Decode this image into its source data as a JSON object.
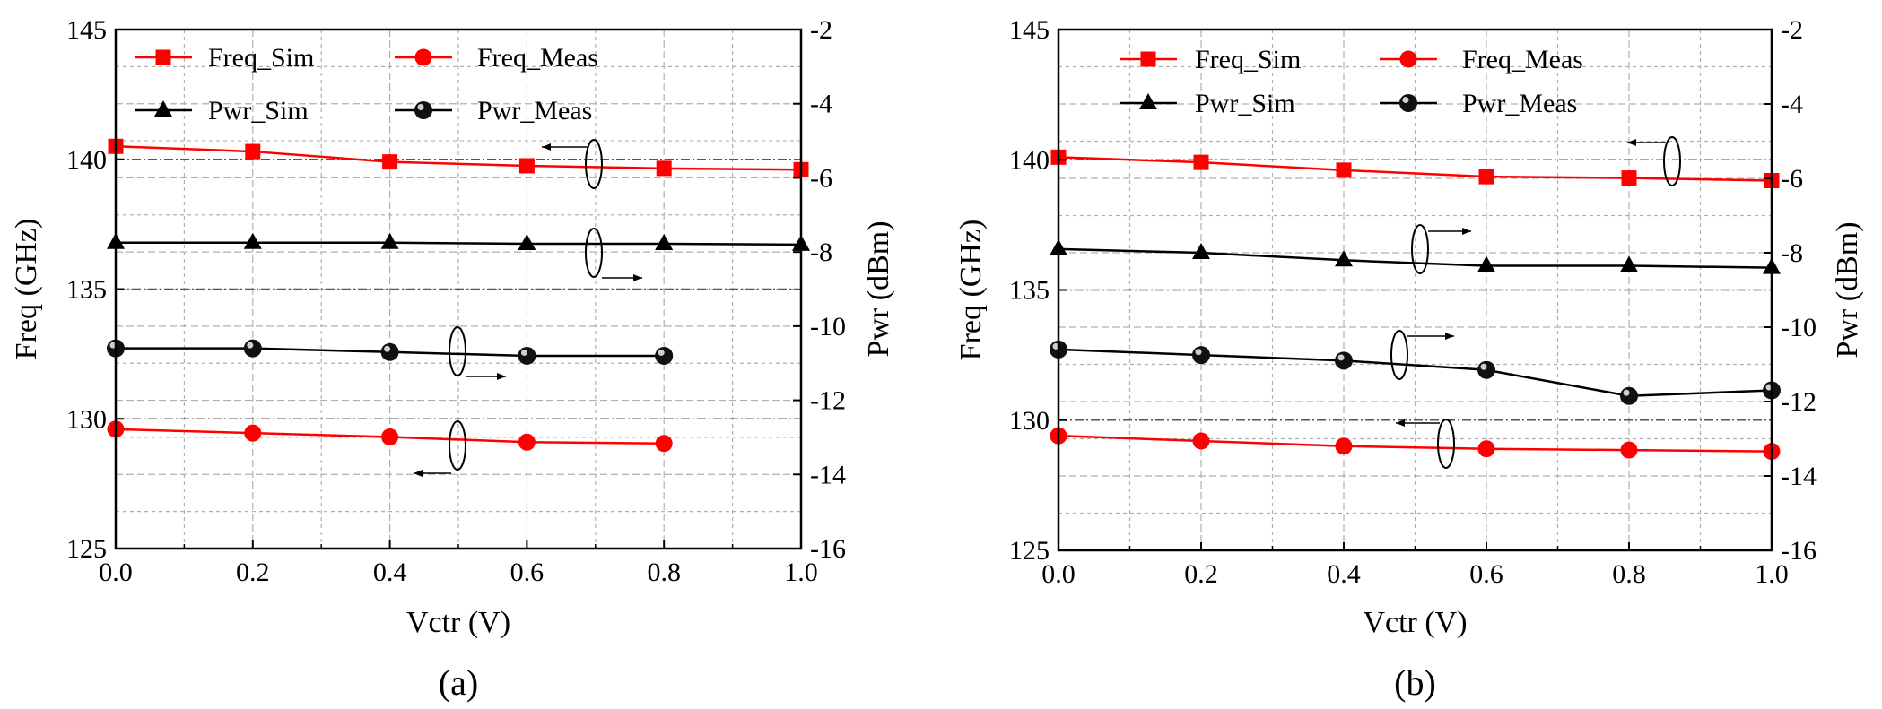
{
  "colors": {
    "sim_freq": "#ff0000",
    "meas_freq": "#ff0000",
    "pwr": "#000000",
    "grid": "#b0b0b0",
    "axis": "#000000"
  },
  "chart_data": [
    {
      "type": "line",
      "panel_label": "(a)",
      "xlabel": "Vctr (V)",
      "ylabel_left": "Freq (GHz)",
      "ylabel_right": "Pwr (dBm)",
      "xlim": [
        0,
        1.0
      ],
      "ylim_left": [
        125,
        145
      ],
      "ylim_right": [
        -16,
        -2
      ],
      "x_ticks": [
        "0.0",
        "0.2",
        "0.4",
        "0.6",
        "0.8",
        "1.0"
      ],
      "y_left_ticks": [
        "125",
        "130",
        "135",
        "140",
        "145"
      ],
      "y_right_ticks": [
        "-16",
        "-14",
        "-12",
        "-10",
        "-8",
        "-6",
        "-4",
        "-2"
      ],
      "grid": true,
      "legend_position": "top",
      "series": [
        {
          "name": "Freq_Sim",
          "axis": "left",
          "marker": "square",
          "color": "#ff0000",
          "x": [
            0,
            0.2,
            0.4,
            0.6,
            0.8,
            1.0
          ],
          "values": [
            140.5,
            140.3,
            139.9,
            139.75,
            139.65,
            139.6
          ]
        },
        {
          "name": "Freq_Meas",
          "axis": "left",
          "marker": "circle",
          "color": "#ff0000",
          "x": [
            0,
            0.2,
            0.4,
            0.6,
            0.8
          ],
          "values": [
            129.6,
            129.45,
            129.3,
            129.1,
            129.05
          ]
        },
        {
          "name": "Pwr_Sim",
          "axis": "right",
          "marker": "triangle",
          "color": "#000000",
          "x": [
            0,
            0.2,
            0.4,
            0.6,
            0.8,
            1.0
          ],
          "values": [
            -7.75,
            -7.75,
            -7.75,
            -7.78,
            -7.78,
            -7.8
          ]
        },
        {
          "name": "Pwr_Meas",
          "axis": "right",
          "marker": "ball",
          "color": "#000000",
          "x": [
            0,
            0.2,
            0.4,
            0.6,
            0.8
          ],
          "values": [
            -10.6,
            -10.6,
            -10.7,
            -10.8,
            -10.8
          ]
        }
      ]
    },
    {
      "type": "line",
      "panel_label": "(b)",
      "xlabel": "Vctr (V)",
      "ylabel_left": "Freq (GHz)",
      "ylabel_right": "Pwr (dBm)",
      "xlim": [
        0,
        1.0
      ],
      "ylim_left": [
        125,
        145
      ],
      "ylim_right": [
        -16,
        -2
      ],
      "x_ticks": [
        "0.0",
        "0.2",
        "0.4",
        "0.6",
        "0.8",
        "1.0"
      ],
      "y_left_ticks": [
        "125",
        "130",
        "135",
        "140",
        "145"
      ],
      "y_right_ticks": [
        "-16",
        "-14",
        "-12",
        "-10",
        "-8",
        "-6",
        "-4",
        "-2"
      ],
      "grid": true,
      "legend_position": "top",
      "series": [
        {
          "name": "Freq_Sim",
          "axis": "left",
          "marker": "square",
          "color": "#ff0000",
          "x": [
            0,
            0.2,
            0.4,
            0.6,
            0.8,
            1.0
          ],
          "values": [
            140.1,
            139.9,
            139.6,
            139.35,
            139.3,
            139.2
          ]
        },
        {
          "name": "Freq_Meas",
          "axis": "left",
          "marker": "circle",
          "color": "#ff0000",
          "x": [
            0,
            0.2,
            0.4,
            0.6,
            0.8,
            1.0
          ],
          "values": [
            129.4,
            129.2,
            129.0,
            128.9,
            128.85,
            128.8
          ]
        },
        {
          "name": "Pwr_Sim",
          "axis": "right",
          "marker": "triangle",
          "color": "#000000",
          "x": [
            0,
            0.2,
            0.4,
            0.6,
            0.8,
            1.0
          ],
          "values": [
            -7.9,
            -8.0,
            -8.2,
            -8.35,
            -8.35,
            -8.4
          ]
        },
        {
          "name": "Pwr_Meas",
          "axis": "right",
          "marker": "ball",
          "color": "#000000",
          "x": [
            0,
            0.2,
            0.4,
            0.6,
            0.8,
            1.0
          ],
          "values": [
            -10.6,
            -10.75,
            -10.9,
            -11.15,
            -11.85,
            -11.7
          ]
        }
      ]
    }
  ]
}
